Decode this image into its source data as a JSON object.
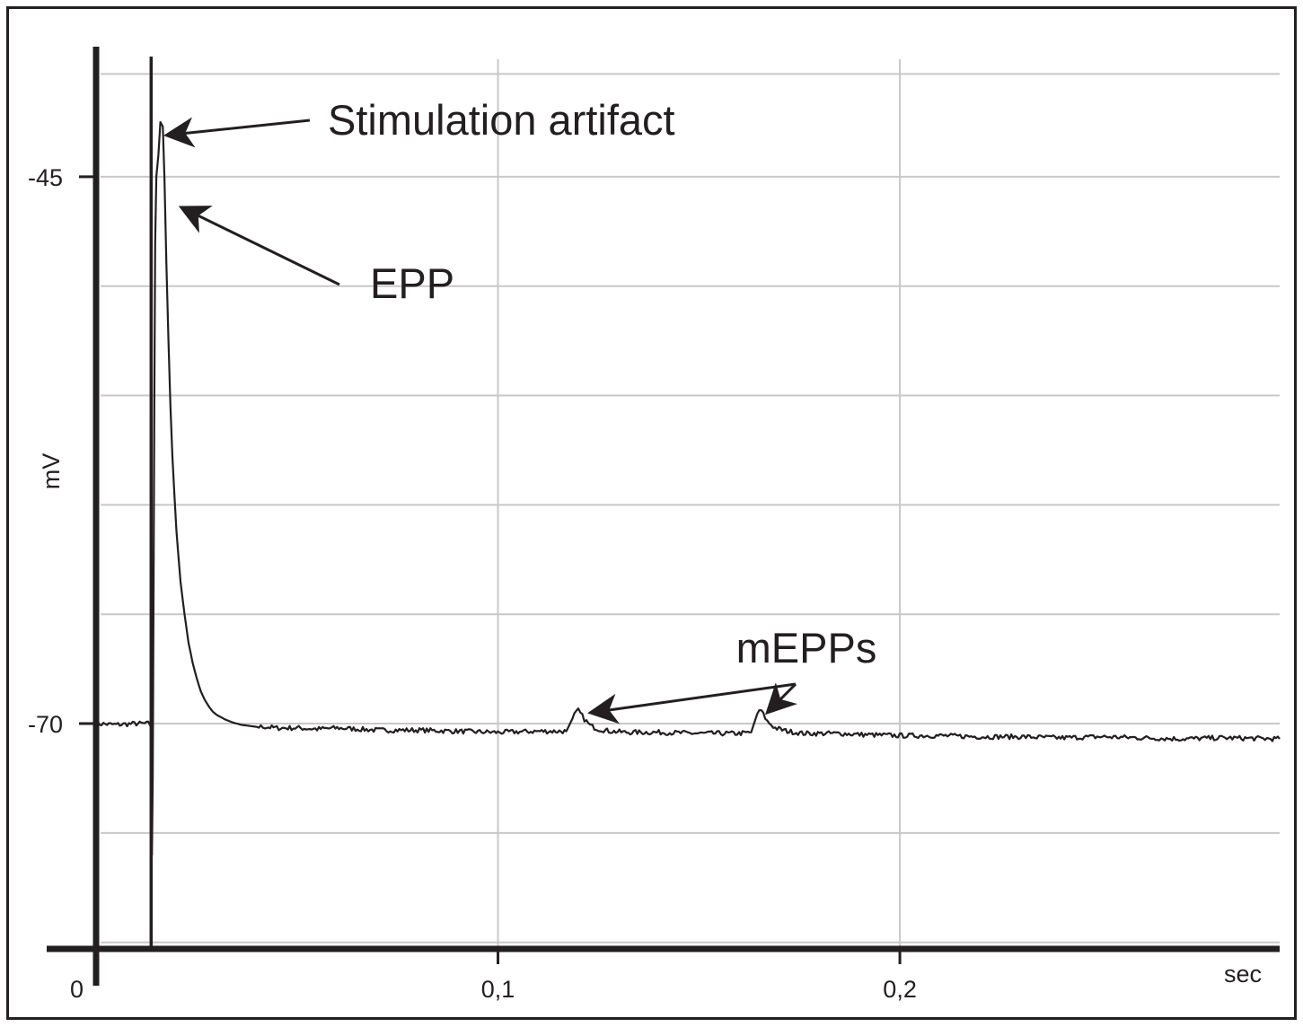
{
  "chart_data": {
    "type": "line",
    "title": "",
    "xlabel": "sec",
    "ylabel": "mV",
    "xlim": [
      0,
      0.2945
    ],
    "ylim": [
      -80.3,
      -39.3
    ],
    "x_ticks": [
      {
        "value": 0,
        "label": "0"
      },
      {
        "value": 0.1,
        "label": "0,1"
      },
      {
        "value": 0.2,
        "label": "0,2"
      }
    ],
    "y_ticks": [
      {
        "value": -45,
        "label": "-45"
      },
      {
        "value": -70,
        "label": "-70"
      }
    ],
    "grid": true,
    "grid_x": [
      0.1,
      0.2
    ],
    "grid_y": [
      -40.3,
      -45,
      -50,
      -55,
      -60,
      -65,
      -70,
      -75,
      -80
    ],
    "series": [
      {
        "x": [
          0,
          0.005,
          0.01,
          0.013,
          0.0138,
          0.0139,
          0.0141,
          0.0143,
          0.0145,
          0.0147,
          0.015,
          0.0155,
          0.016,
          0.0166,
          0.017,
          0.0175,
          0.018,
          0.0185,
          0.019,
          0.0195,
          0.02,
          0.021,
          0.022,
          0.023,
          0.024,
          0.025,
          0.026,
          0.027,
          0.028,
          0.029,
          0.03,
          0.032,
          0.034,
          0.036,
          0.038,
          0.04,
          0.042,
          0.045,
          0.05,
          0.055,
          0.06,
          0.07,
          0.08,
          0.09,
          0.1,
          0.11,
          0.117,
          0.119,
          0.12,
          0.1215,
          0.123,
          0.125,
          0.128,
          0.132,
          0.14,
          0.15,
          0.16,
          0.163,
          0.1645,
          0.1655,
          0.167,
          0.169,
          0.172,
          0.176,
          0.185,
          0.19,
          0.2,
          0.21,
          0.22,
          0.23,
          0.24,
          0.25,
          0.26,
          0.27,
          0.28,
          0.2945
        ],
        "y": [
          -70.0,
          -70.05,
          -70.0,
          -70.0,
          -70.1,
          -76.0,
          -72.5,
          -64.0,
          -55.0,
          -48.0,
          -45.0,
          -44.0,
          -42.5,
          -42.7,
          -45.0,
          -49.0,
          -52.5,
          -55.5,
          -57.8,
          -59.6,
          -61.2,
          -63.5,
          -65.0,
          -66.3,
          -67.2,
          -67.9,
          -68.5,
          -68.9,
          -69.2,
          -69.45,
          -69.6,
          -69.8,
          -69.95,
          -70.05,
          -70.1,
          -70.15,
          -70.15,
          -70.2,
          -70.2,
          -70.25,
          -70.2,
          -70.3,
          -70.3,
          -70.35,
          -70.4,
          -70.35,
          -70.35,
          -69.6,
          -69.4,
          -69.8,
          -70.1,
          -70.25,
          -70.35,
          -70.4,
          -70.4,
          -70.45,
          -70.45,
          -70.4,
          -69.55,
          -69.4,
          -69.9,
          -70.2,
          -70.35,
          -70.45,
          -70.45,
          -70.5,
          -70.55,
          -70.55,
          -70.6,
          -70.6,
          -70.65,
          -70.6,
          -70.65,
          -70.7,
          -70.65,
          -70.7
        ]
      }
    ],
    "stimulus_x": 0.0137,
    "annotations": [
      {
        "text": "Stimulation artifact",
        "target": [
          0.0175,
          -43.1
        ]
      },
      {
        "text": "EPP",
        "target": [
          0.0212,
          -46.4
        ]
      },
      {
        "text": "mEPPs",
        "targets": [
          [
            0.123,
            -69.5
          ],
          [
            0.167,
            -69.5
          ]
        ]
      }
    ]
  }
}
